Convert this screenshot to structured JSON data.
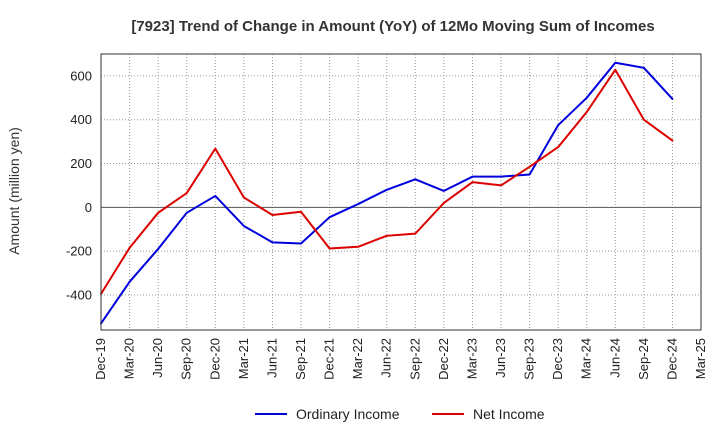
{
  "chart_data": {
    "type": "line",
    "title": "[7923]  Trend of Change in Amount (YoY) of 12Mo Moving Sum of Incomes",
    "xlabel": "",
    "ylabel": "Amount (million yen)",
    "categories": [
      "Dec-19",
      "Mar-20",
      "Jun-20",
      "Sep-20",
      "Dec-20",
      "Mar-21",
      "Jun-21",
      "Sep-21",
      "Dec-21",
      "Mar-22",
      "Jun-22",
      "Sep-22",
      "Dec-22",
      "Mar-23",
      "Jun-23",
      "Sep-23",
      "Dec-23",
      "Mar-24",
      "Jun-24",
      "Sep-24",
      "Dec-24",
      "Mar-25"
    ],
    "yticks": [
      -400,
      -200,
      0,
      200,
      400,
      600
    ],
    "ylim": [
      -560,
      700
    ],
    "grid": true,
    "legend_position": "bottom",
    "series": [
      {
        "name": "Ordinary Income",
        "color": "#0000dd",
        "values": [
          -530,
          -340,
          -190,
          -25,
          52,
          -85,
          -160,
          -165,
          -45,
          15,
          80,
          128,
          75,
          140,
          140,
          150,
          375,
          500,
          660,
          637,
          495,
          null
        ]
      },
      {
        "name": "Net Income",
        "color": "#dd0000",
        "values": [
          -395,
          -185,
          -25,
          65,
          268,
          45,
          -35,
          -20,
          -188,
          -180,
          -130,
          -120,
          20,
          115,
          100,
          185,
          275,
          435,
          628,
          400,
          305,
          null
        ]
      }
    ]
  }
}
